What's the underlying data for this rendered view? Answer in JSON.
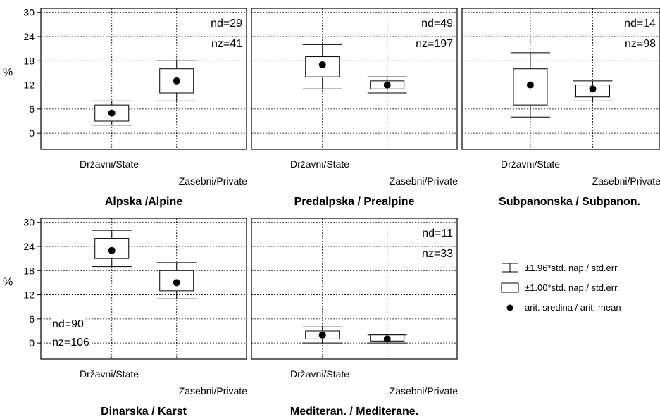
{
  "chart_data": {
    "type": "boxplot",
    "ylabel": "%",
    "ylim": [
      -4,
      31
    ],
    "yticks": [
      0,
      6,
      12,
      18,
      24,
      30
    ],
    "grid": true,
    "categories": [
      "Državni/State",
      "Zasebni/Private"
    ],
    "panels": [
      {
        "title": "Alpska /Alpine",
        "nd": "nd=29",
        "nz": "nz=41",
        "show_yaxis": true,
        "boxes": [
          {
            "category": "Državni/State",
            "mean": 5,
            "box_low": 3,
            "box_high": 7,
            "whisker_low": 2,
            "whisker_high": 8
          },
          {
            "category": "Zasebni/Private",
            "mean": 13,
            "box_low": 10,
            "box_high": 16,
            "whisker_low": 8,
            "whisker_high": 18
          }
        ]
      },
      {
        "title": "Predalpska / Prealpine",
        "nd": "nd=49",
        "nz": "nz=197",
        "show_yaxis": false,
        "boxes": [
          {
            "category": "Državni/State",
            "mean": 17,
            "box_low": 14,
            "box_high": 19,
            "whisker_low": 11,
            "whisker_high": 22
          },
          {
            "category": "Zasebni/Private",
            "mean": 12,
            "box_low": 11,
            "box_high": 13,
            "whisker_low": 10,
            "whisker_high": 14
          }
        ]
      },
      {
        "title": "Subpanonska / Subpanon.",
        "nd": "nd=14",
        "nz": "nz=98",
        "show_yaxis": false,
        "boxes": [
          {
            "category": "Državni/State",
            "mean": 12,
            "box_low": 7,
            "box_high": 16,
            "whisker_low": 4,
            "whisker_high": 20
          },
          {
            "category": "Zasebni/Private",
            "mean": 11,
            "box_low": 9,
            "box_high": 12,
            "whisker_low": 8,
            "whisker_high": 13
          }
        ]
      },
      {
        "title": "Dinarska / Karst",
        "nd": "nd=90",
        "nz": "nz=106",
        "show_yaxis": true,
        "boxes": [
          {
            "category": "Državni/State",
            "mean": 23,
            "box_low": 21,
            "box_high": 26,
            "whisker_low": 19,
            "whisker_high": 28
          },
          {
            "category": "Zasebni/Private",
            "mean": 15,
            "box_low": 13,
            "box_high": 18,
            "whisker_low": 11,
            "whisker_high": 20
          }
        ]
      },
      {
        "title": "Mediteran. / Mediterane.",
        "nd": "nd=11",
        "nz": "nz=33",
        "show_yaxis": false,
        "boxes": [
          {
            "category": "Državni/State",
            "mean": 2,
            "box_low": 1,
            "box_high": 3,
            "whisker_low": 0,
            "whisker_high": 4
          },
          {
            "category": "Zasebni/Private",
            "mean": 1,
            "box_low": 0.5,
            "box_high": 2,
            "whisker_low": 0,
            "whisker_high": 2
          }
        ]
      }
    ],
    "legend": [
      {
        "symbol": "whisker",
        "label": "±1.96*std. nap./ std.err."
      },
      {
        "symbol": "box",
        "label": "±1.00*std. nap./ std.err."
      },
      {
        "symbol": "dot",
        "label": "arit. sredina / arit. mean"
      }
    ]
  }
}
